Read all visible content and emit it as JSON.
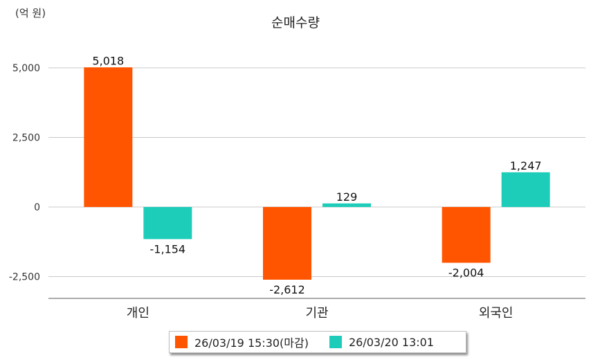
{
  "unit_label": "(억 원)",
  "chart_data": {
    "type": "bar",
    "title": "순매수량",
    "categories": [
      "개인",
      "기관",
      "외국인"
    ],
    "series": [
      {
        "name": "26/03/19 15:30(마감)",
        "color": "#ff5500",
        "values": [
          5018,
          -2612,
          -2004
        ],
        "labels": [
          "5,018",
          "-2,612",
          "-2,004"
        ]
      },
      {
        "name": "26/03/20 13:01",
        "color": "#1ecdb9",
        "values": [
          -1154,
          129,
          1247
        ],
        "labels": [
          "-1,154",
          "129",
          "1,247"
        ]
      }
    ],
    "y_ticks": [
      5000,
      2500,
      0,
      -2500
    ],
    "y_tick_labels": [
      "5,000",
      "2,500",
      "0",
      "-2,500"
    ],
    "ylim": [
      -3300,
      6500
    ],
    "grid": true,
    "legend_position": "bottom"
  }
}
